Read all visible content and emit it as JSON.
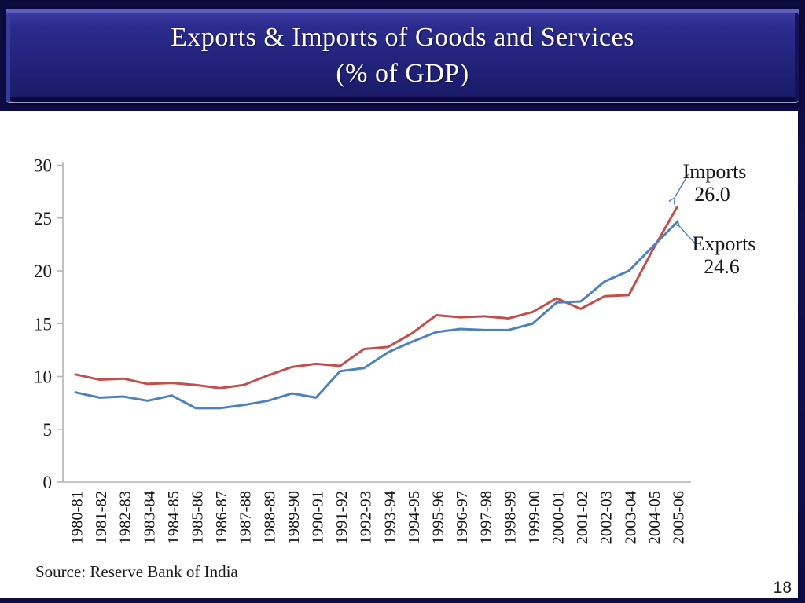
{
  "slide": {
    "title_line1": "Exports & Imports of Goods and Services",
    "title_line2": "(% of GDP)",
    "source": "Source: Reserve Bank of India",
    "page_number": "18"
  },
  "chart_data": {
    "type": "line",
    "title": "Exports & Imports of Goods and Services (% of GDP)",
    "xlabel": "",
    "ylabel": "",
    "ylim": [
      0,
      30
    ],
    "yticks": [
      0,
      5,
      10,
      15,
      20,
      25,
      30
    ],
    "grid": false,
    "legend_position": "annotated-at-line-ends",
    "axis_color": "#b3b3b3",
    "tick_label_color": "#161616",
    "arrow_color": "#4f81bd",
    "categories": [
      "1980-81",
      "1981-82",
      "1982-83",
      "1983-84",
      "1984-85",
      "1985-86",
      "1986-87",
      "1987-88",
      "1988-89",
      "1989-90",
      "1990-91",
      "1991-92",
      "1992-93",
      "1993-94",
      "1994-95",
      "1995-96",
      "1996-97",
      "1997-98",
      "1998-99",
      "1999-00",
      "2000-01",
      "2001-02",
      "2002-03",
      "2003-04",
      "2004-05",
      "2005-06"
    ],
    "series": [
      {
        "name": "Imports",
        "color": "#c0504d",
        "values": [
          10.2,
          9.7,
          9.8,
          9.3,
          9.4,
          9.2,
          8.9,
          9.2,
          10.1,
          10.9,
          11.2,
          11.0,
          12.6,
          12.8,
          14.1,
          15.8,
          15.6,
          15.7,
          15.5,
          16.1,
          17.4,
          16.4,
          17.6,
          17.7,
          22.0,
          26.0
        ]
      },
      {
        "name": "Exports",
        "color": "#4f81bd",
        "values": [
          8.5,
          8.0,
          8.1,
          7.7,
          8.2,
          7.0,
          7.0,
          7.3,
          7.7,
          8.4,
          8.0,
          10.5,
          10.8,
          12.3,
          13.3,
          14.2,
          14.5,
          14.4,
          14.4,
          15.0,
          17.0,
          17.1,
          19.0,
          20.0,
          22.3,
          24.6
        ]
      }
    ],
    "annotations": [
      {
        "series": "Imports",
        "label": "Imports",
        "value_label": "26.0"
      },
      {
        "series": "Exports",
        "label": "Exports",
        "value_label": "24.6"
      }
    ]
  }
}
